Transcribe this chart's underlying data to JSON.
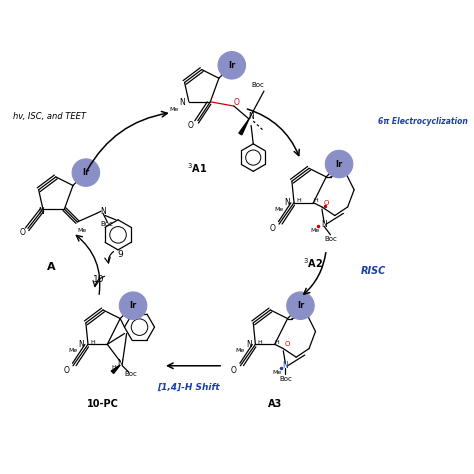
{
  "bg_color": "#ffffff",
  "ir_color": "#8B8FC8",
  "ir_edge_color": "#7070aa",
  "ir_text_color": "#000000",
  "black": "#000000",
  "red": "#cc0000",
  "blue": "#1a3faa",
  "step1_label": "6π Electrocyclization",
  "step2_label": "RISC",
  "step3_label": "[1,4]-H Shift",
  "step4_label": "hv, ISC, and TEET",
  "label_3A1": "$^3$A1",
  "label_3A2": "$^3$A2",
  "label_A3": "A3",
  "label_10PC": "10-PC",
  "label_A": "A",
  "fig_width": 4.74,
  "fig_height": 4.74,
  "dpi": 100
}
